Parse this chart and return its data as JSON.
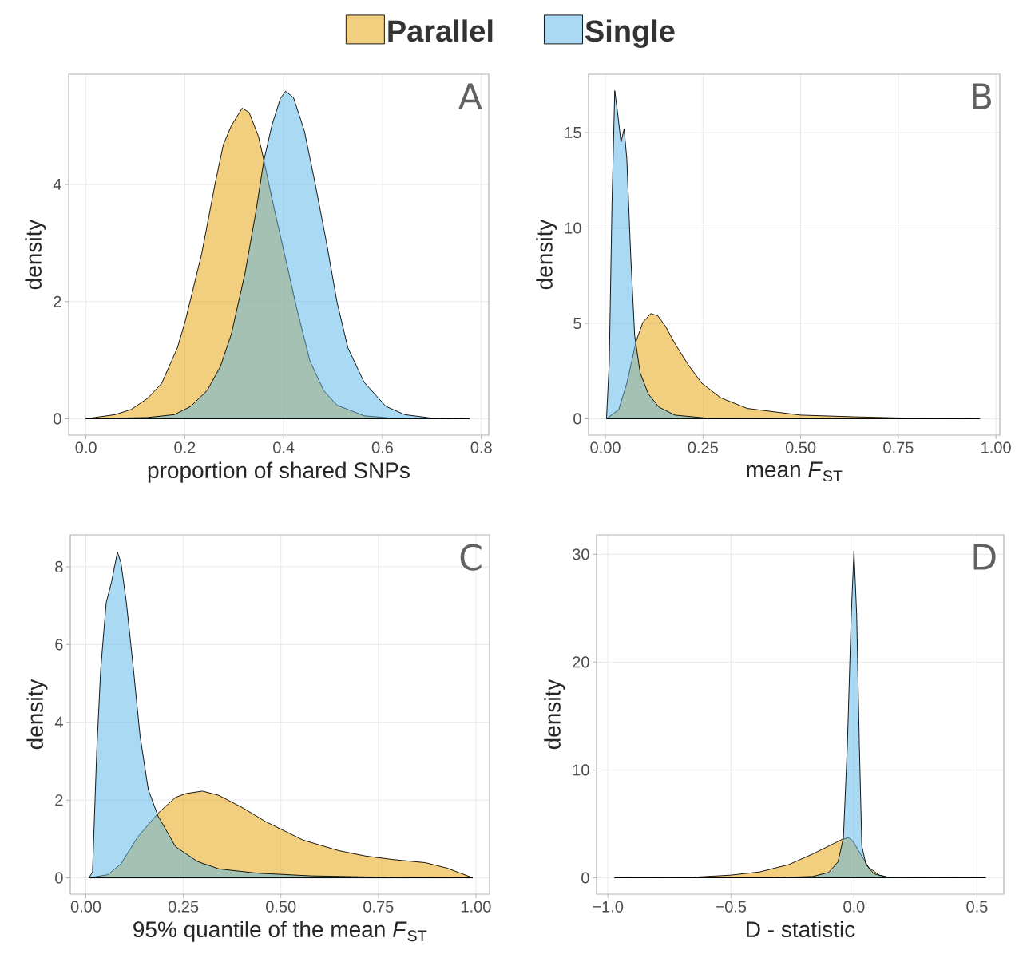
{
  "chart_data": [
    {
      "type": "area",
      "xlabel": "proportion of shared SNPs",
      "ylabel": "density",
      "annotations": [
        "A"
      ],
      "grid": true,
      "legend": "top",
      "xlim": [
        -0.035,
        0.815
      ],
      "ylim": [
        -0.28,
        5.88
      ],
      "xticks": [
        {
          "value": 0,
          "label": "0.0"
        },
        0.2,
        0.4,
        0.6,
        0.8
      ],
      "yticks": [
        0,
        2,
        4
      ],
      "series": [
        {
          "name": "Parallel",
          "color": "#e69f00",
          "x": [
            0.0,
            0.059,
            0.092,
            0.125,
            0.153,
            0.185,
            0.201,
            0.234,
            0.261,
            0.278,
            0.294,
            0.316,
            0.33,
            0.349,
            0.36,
            0.376,
            0.398,
            0.426,
            0.453,
            0.481,
            0.508,
            0.563,
            0.618,
            0.776
          ],
          "values": [
            0,
            0.07,
            0.16,
            0.35,
            0.6,
            1.21,
            1.67,
            2.81,
            4.0,
            4.68,
            5.0,
            5.3,
            5.23,
            4.82,
            4.41,
            3.77,
            2.95,
            1.9,
            0.99,
            0.48,
            0.23,
            0.05,
            0.01,
            0
          ]
        },
        {
          "name": "Single",
          "color": "#56b4e9",
          "x": [
            0.0,
            0.124,
            0.179,
            0.212,
            0.245,
            0.272,
            0.294,
            0.322,
            0.344,
            0.36,
            0.376,
            0.393,
            0.404,
            0.42,
            0.442,
            0.464,
            0.486,
            0.508,
            0.53,
            0.563,
            0.607,
            0.645,
            0.7,
            0.776
          ],
          "values": [
            0,
            0.02,
            0.07,
            0.21,
            0.48,
            0.89,
            1.44,
            2.49,
            3.54,
            4.41,
            5.0,
            5.46,
            5.59,
            5.48,
            4.91,
            4.0,
            3.04,
            1.99,
            1.21,
            0.62,
            0.21,
            0.07,
            0.01,
            0
          ]
        }
      ]
    },
    {
      "type": "area",
      "xlabel": "mean *F*$_{ST}$",
      "ylabel": "density",
      "annotations": [
        "B"
      ],
      "grid": true,
      "xlim": [
        -0.043,
        1.01
      ],
      "ylim": [
        -0.86,
        18.06
      ],
      "xticks": [
        {
          "value": 0,
          "label": "0.00"
        },
        0.25,
        {
          "value": 0.5,
          "label": "0.50"
        },
        0.75,
        {
          "value": 1,
          "label": "1.00"
        }
      ],
      "yticks": [
        0,
        5,
        10,
        15
      ],
      "series": [
        {
          "color": "#e69f00",
          "x": [
            0.003,
            0.034,
            0.055,
            0.079,
            0.096,
            0.116,
            0.134,
            0.154,
            0.178,
            0.212,
            0.247,
            0.295,
            0.363,
            0.5,
            0.637,
            0.774,
            0.959
          ],
          "values": [
            0,
            0.47,
            1.86,
            4.08,
            5.05,
            5.51,
            5.4,
            4.84,
            3.94,
            2.83,
            1.86,
            1.1,
            0.54,
            0.19,
            0.1,
            0.03,
            0
          ]
        },
        {
          "color": "#56b4e9",
          "x": [
            0.003,
            0.01,
            0.017,
            0.024,
            0.031,
            0.04,
            0.048,
            0.055,
            0.065,
            0.075,
            0.089,
            0.11,
            0.137,
            0.178,
            0.26,
            0.959
          ],
          "values": [
            0.05,
            2.97,
            11.3,
            17.2,
            16.1,
            14.5,
            15.2,
            13.6,
            8.5,
            4.36,
            2.41,
            1.3,
            0.61,
            0.19,
            0.03,
            0
          ]
        }
      ]
    },
    {
      "type": "area",
      "xlabel": "95% quantile of the mean *F*$_{ST}$",
      "ylabel": "density",
      "annotations": [
        "C"
      ],
      "grid": true,
      "xlim": [
        -0.04,
        1.035
      ],
      "ylim": [
        -0.42,
        8.82
      ],
      "xticks": [
        {
          "value": 0,
          "label": "0.00"
        },
        0.25,
        {
          "value": 0.5,
          "label": "0.50"
        },
        0.75,
        {
          "value": 1,
          "label": "1.00"
        }
      ],
      "yticks": [
        0,
        2,
        4,
        6,
        8
      ],
      "series": [
        {
          "color": "#e69f00",
          "x": [
            0.008,
            0.056,
            0.09,
            0.132,
            0.185,
            0.23,
            0.258,
            0.299,
            0.341,
            0.404,
            0.46,
            0.557,
            0.648,
            0.717,
            0.787,
            0.87,
            0.926,
            0.992
          ],
          "values": [
            0,
            0.08,
            0.36,
            1.04,
            1.66,
            2.07,
            2.17,
            2.23,
            2.12,
            1.79,
            1.45,
            0.97,
            0.7,
            0.56,
            0.47,
            0.39,
            0.25,
            0
          ]
        },
        {
          "color": "#56b4e9",
          "x": [
            0.008,
            0.017,
            0.028,
            0.038,
            0.052,
            0.066,
            0.081,
            0.09,
            0.104,
            0.122,
            0.139,
            0.16,
            0.185,
            0.23,
            0.286,
            0.341,
            0.439,
            0.578,
            0.787,
            0.992
          ],
          "values": [
            0,
            0.15,
            3.3,
            5.36,
            7.07,
            7.62,
            8.38,
            8.1,
            7.07,
            5.36,
            3.64,
            2.27,
            1.59,
            0.8,
            0.42,
            0.23,
            0.12,
            0.05,
            0.01,
            0
          ]
        }
      ]
    },
    {
      "type": "area",
      "xlabel": "D - statistic",
      "ylabel": "density",
      "annotations": [
        "D"
      ],
      "grid": true,
      "xlim": [
        -1.046,
        0.609
      ],
      "ylim": [
        -1.52,
        31.8
      ],
      "xticks": [
        {
          "value": -1,
          "label": "−1.0"
        },
        {
          "value": -0.5,
          "label": "−0.5"
        },
        {
          "value": 0,
          "label": "0.0"
        },
        0.5
      ],
      "yticks": [
        0,
        10,
        20,
        30
      ],
      "series": [
        {
          "color": "#e69f00",
          "x": [
            -0.973,
            -0.654,
            -0.503,
            -0.384,
            -0.265,
            -0.168,
            -0.092,
            -0.049,
            -0.022,
            -0.005,
            0.027,
            0.059,
            0.103,
            0.146,
            0.535
          ],
          "values": [
            0,
            0.05,
            0.24,
            0.54,
            1.22,
            2.2,
            3.06,
            3.55,
            3.72,
            3.42,
            2.2,
            0.98,
            0.24,
            0.02,
            0
          ]
        },
        {
          "color": "#56b4e9",
          "x": [
            -0.973,
            -0.33,
            -0.168,
            -0.103,
            -0.065,
            -0.043,
            -0.027,
            -0.011,
            0.0,
            0.011,
            0.022,
            0.032,
            0.049,
            0.081,
            0.135,
            0.535
          ],
          "values": [
            0,
            0,
            0.12,
            0.49,
            1.47,
            3.67,
            12.2,
            24.4,
            30.3,
            24.4,
            12.2,
            2.93,
            1.22,
            0.37,
            0.05,
            0
          ]
        }
      ]
    }
  ]
}
